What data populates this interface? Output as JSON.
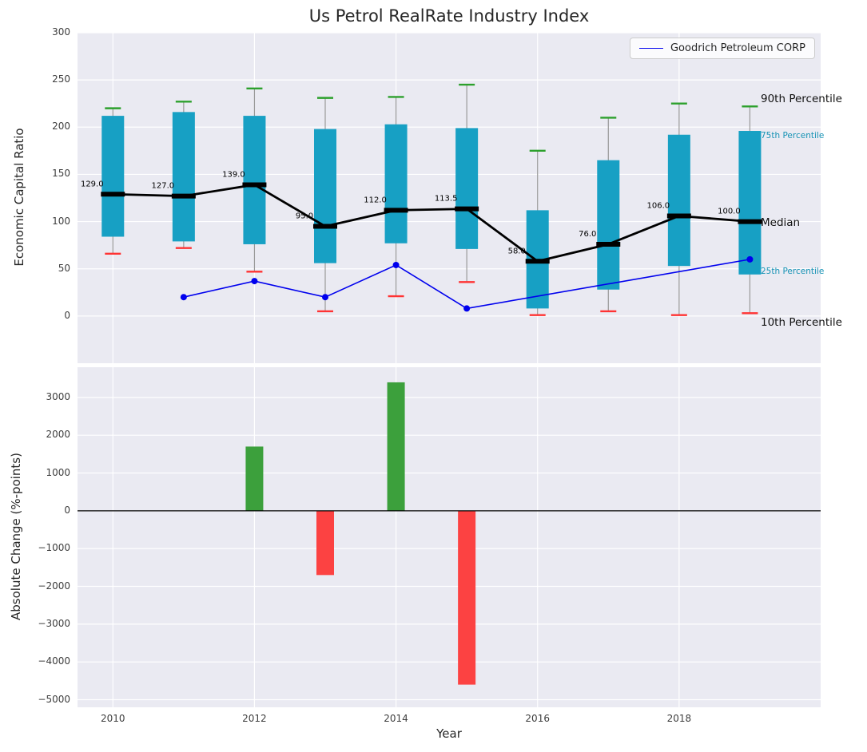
{
  "title": "Us Petrol RealRate Industry Index",
  "legend": {
    "label": "Goodrich Petroleum CORP"
  },
  "chart_data": [
    {
      "type": "boxplot",
      "title": "Us Petrol RealRate Industry Index",
      "xlabel": "",
      "ylabel": "Economic Capital Ratio",
      "xlim": [
        2009.5,
        2020
      ],
      "ylim": [
        -50,
        300
      ],
      "xticks": [
        2010,
        2012,
        2014,
        2016,
        2018
      ],
      "yticks": [
        300,
        250,
        200,
        150,
        100,
        50,
        0
      ],
      "grid": true,
      "legend_position": "upper right",
      "years": [
        2010,
        2011,
        2012,
        2013,
        2014,
        2015,
        2016,
        2017,
        2018,
        2019
      ],
      "p90": [
        220,
        227,
        241,
        231,
        232,
        245,
        175,
        210,
        225,
        222
      ],
      "p75": [
        212,
        216,
        212,
        198,
        203,
        199,
        112,
        165,
        192,
        196
      ],
      "median": [
        129,
        127,
        139,
        95,
        112,
        113.5,
        58,
        76,
        106,
        100
      ],
      "p25": [
        84,
        79,
        76,
        56,
        77,
        71,
        8,
        28,
        53,
        44
      ],
      "p10": [
        66,
        72,
        47,
        5,
        21,
        36,
        1,
        5,
        1,
        3
      ],
      "median_labels": [
        "129.0",
        "127.0",
        "139.0",
        "95.0",
        "112.0",
        "113.5",
        "58.0",
        "76.0",
        "106.0",
        "100.0"
      ],
      "series": [
        {
          "name": "Goodrich Petroleum CORP",
          "x": [
            2011,
            2012,
            2013,
            2014,
            2015,
            2019
          ],
          "y": [
            20,
            37,
            20,
            54,
            8,
            60
          ]
        }
      ],
      "side_labels": [
        {
          "text": "90th Percentile",
          "y": 229,
          "style": "major"
        },
        {
          "text": "75th Percentile",
          "y": 190,
          "style": "minor"
        },
        {
          "text": "Median",
          "y": 98,
          "style": "major"
        },
        {
          "text": "25th Percentile",
          "y": 46,
          "style": "minor"
        },
        {
          "text": "10th Percentile",
          "y": -8,
          "style": "major"
        }
      ],
      "colors": {
        "box": "#17a0c4",
        "p90_cap": "#2ca02c",
        "p10_cap": "#ff3333",
        "median": "#000000",
        "series": "#0000ee",
        "whisker": "#999999",
        "grid": "#ffffff",
        "plot_bg": "#eaeaf2",
        "minor_label": "#1793b5"
      }
    },
    {
      "type": "bar",
      "xlabel": "Year",
      "ylabel": "Absolute Change (%-points)",
      "xlim": [
        2009.5,
        2020
      ],
      "ylim": [
        -5200,
        3800
      ],
      "xticks": [
        2010,
        2012,
        2014,
        2016,
        2018
      ],
      "yticks": [
        3000,
        2000,
        1000,
        0,
        -1000,
        -2000,
        -3000,
        -4000,
        -5000
      ],
      "grid": true,
      "x": [
        2012,
        2013,
        2014,
        2015
      ],
      "values": [
        1700,
        -1700,
        3400,
        -4600
      ],
      "colors": {
        "positive": "#3ca03c",
        "negative": "#fc4242",
        "zero_line": "#000000",
        "grid": "#ffffff",
        "plot_bg": "#eaeaf2"
      }
    }
  ]
}
